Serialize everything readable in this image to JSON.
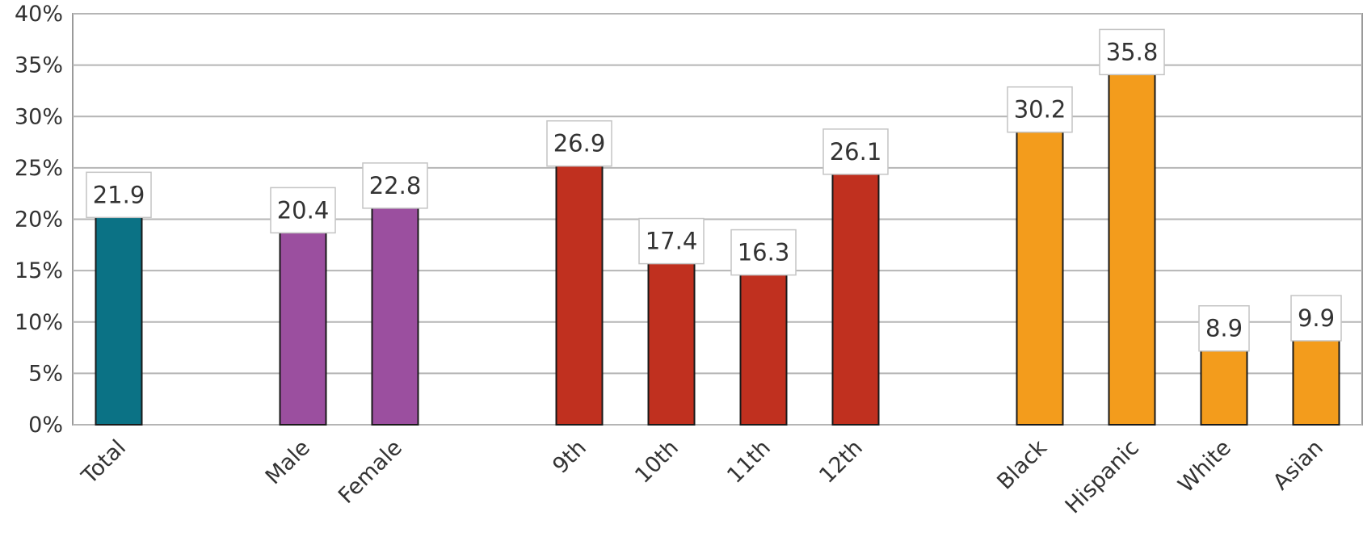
{
  "chart_data": {
    "type": "bar",
    "title": "",
    "xlabel": "",
    "ylabel": "",
    "ylim": [
      0,
      40
    ],
    "y_ticks": [
      "0%",
      "5%",
      "10%",
      "15%",
      "20%",
      "25%",
      "30%",
      "35%",
      "40%"
    ],
    "grid": true,
    "legend": "none",
    "categories": [
      "Total",
      "Male",
      "Female",
      "9th",
      "10th",
      "11th",
      "12th",
      "Black",
      "Hispanic",
      "White",
      "Asian"
    ],
    "values": [
      21.9,
      20.4,
      22.8,
      26.9,
      17.4,
      16.3,
      26.1,
      30.2,
      35.8,
      8.9,
      9.9
    ],
    "data_labels": [
      "21.9",
      "20.4",
      "22.8",
      "26.9",
      "17.4",
      "16.3",
      "26.1",
      "30.2",
      "35.8",
      "8.9",
      "9.9"
    ],
    "bar_colors": [
      "#0b7285",
      "#9b4f9f",
      "#9b4f9f",
      "#c0301f",
      "#c0301f",
      "#c0301f",
      "#c0301f",
      "#f39c1c",
      "#f39c1c",
      "#f39c1c",
      "#f39c1c"
    ],
    "groups": [
      {
        "categories": [
          "Total"
        ],
        "color": "#0b7285"
      },
      {
        "categories": [
          "Male",
          "Female"
        ],
        "color": "#9b4f9f"
      },
      {
        "categories": [
          "9th",
          "10th",
          "11th",
          "12th"
        ],
        "color": "#c0301f"
      },
      {
        "categories": [
          "Black",
          "Hispanic",
          "White",
          "Asian"
        ],
        "color": "#f39c1c"
      }
    ]
  }
}
